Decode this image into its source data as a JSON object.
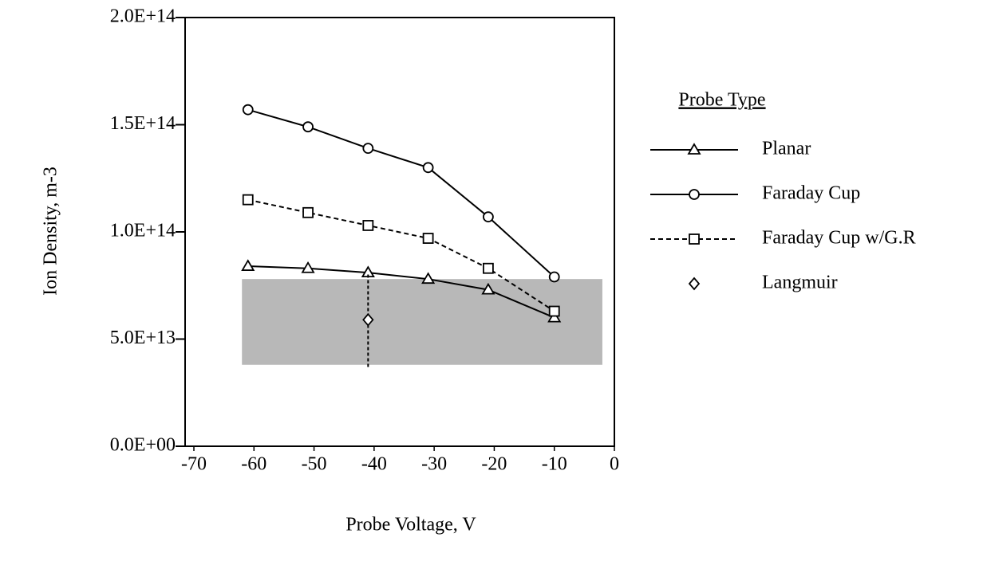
{
  "chart_data": {
    "type": "line",
    "x_label": "Probe Voltage, V",
    "y_label": "Ion Density, m-3",
    "legend_title": "Probe Type",
    "legend": "right",
    "xlim": [
      -70,
      0
    ],
    "xticks": [
      -70,
      -60,
      -50,
      -40,
      -30,
      -20,
      -10,
      0
    ],
    "ylim": [
      0,
      200000000000000.0
    ],
    "yticks": [
      {
        "value": 0,
        "label": "0.0E+00"
      },
      {
        "value": 50000000000000.0,
        "label": "5.0E+13"
      },
      {
        "value": 100000000000000.0,
        "label": "1.0E+14"
      },
      {
        "value": 150000000000000.0,
        "label": "1.5E+14"
      },
      {
        "value": 200000000000000.0,
        "label": "2.0E+14"
      }
    ],
    "shaded_region": {
      "xlim": [
        -62,
        -2
      ],
      "ylim": [
        38000000000000.0,
        78000000000000.0
      ],
      "color": "#b8b8b8"
    },
    "series": [
      {
        "name": "Planar",
        "color": "#000000",
        "marker": "triangle",
        "line": "solid",
        "x": [
          -61,
          -51,
          -41,
          -31,
          -21,
          -10
        ],
        "values": [
          84000000000000.0,
          83000000000000.0,
          81000000000000.0,
          78000000000000.0,
          73000000000000.0,
          60000000000000.0
        ]
      },
      {
        "name": "Faraday Cup",
        "color": "#000000",
        "marker": "circle",
        "line": "solid",
        "x": [
          -61,
          -51,
          -41,
          -31,
          -21,
          -10
        ],
        "values": [
          157000000000000.0,
          149000000000000.0,
          139000000000000.0,
          130000000000000.0,
          107000000000000.0,
          79000000000000.0
        ]
      },
      {
        "name": "Faraday Cup w/G.R",
        "color": "#000000",
        "marker": "square",
        "line": "dashed",
        "x": [
          -61,
          -51,
          -41,
          -31,
          -21,
          -10
        ],
        "values": [
          115000000000000.0,
          109000000000000.0,
          103000000000000.0,
          97000000000000.0,
          83000000000000.0,
          63000000000000.0
        ]
      },
      {
        "name": "Langmuir",
        "color": "#000000",
        "marker": "diamond",
        "line": "none",
        "x": [
          -41
        ],
        "values": [
          59000000000000.0
        ],
        "errors": [
          22000000000000.0
        ]
      }
    ]
  }
}
